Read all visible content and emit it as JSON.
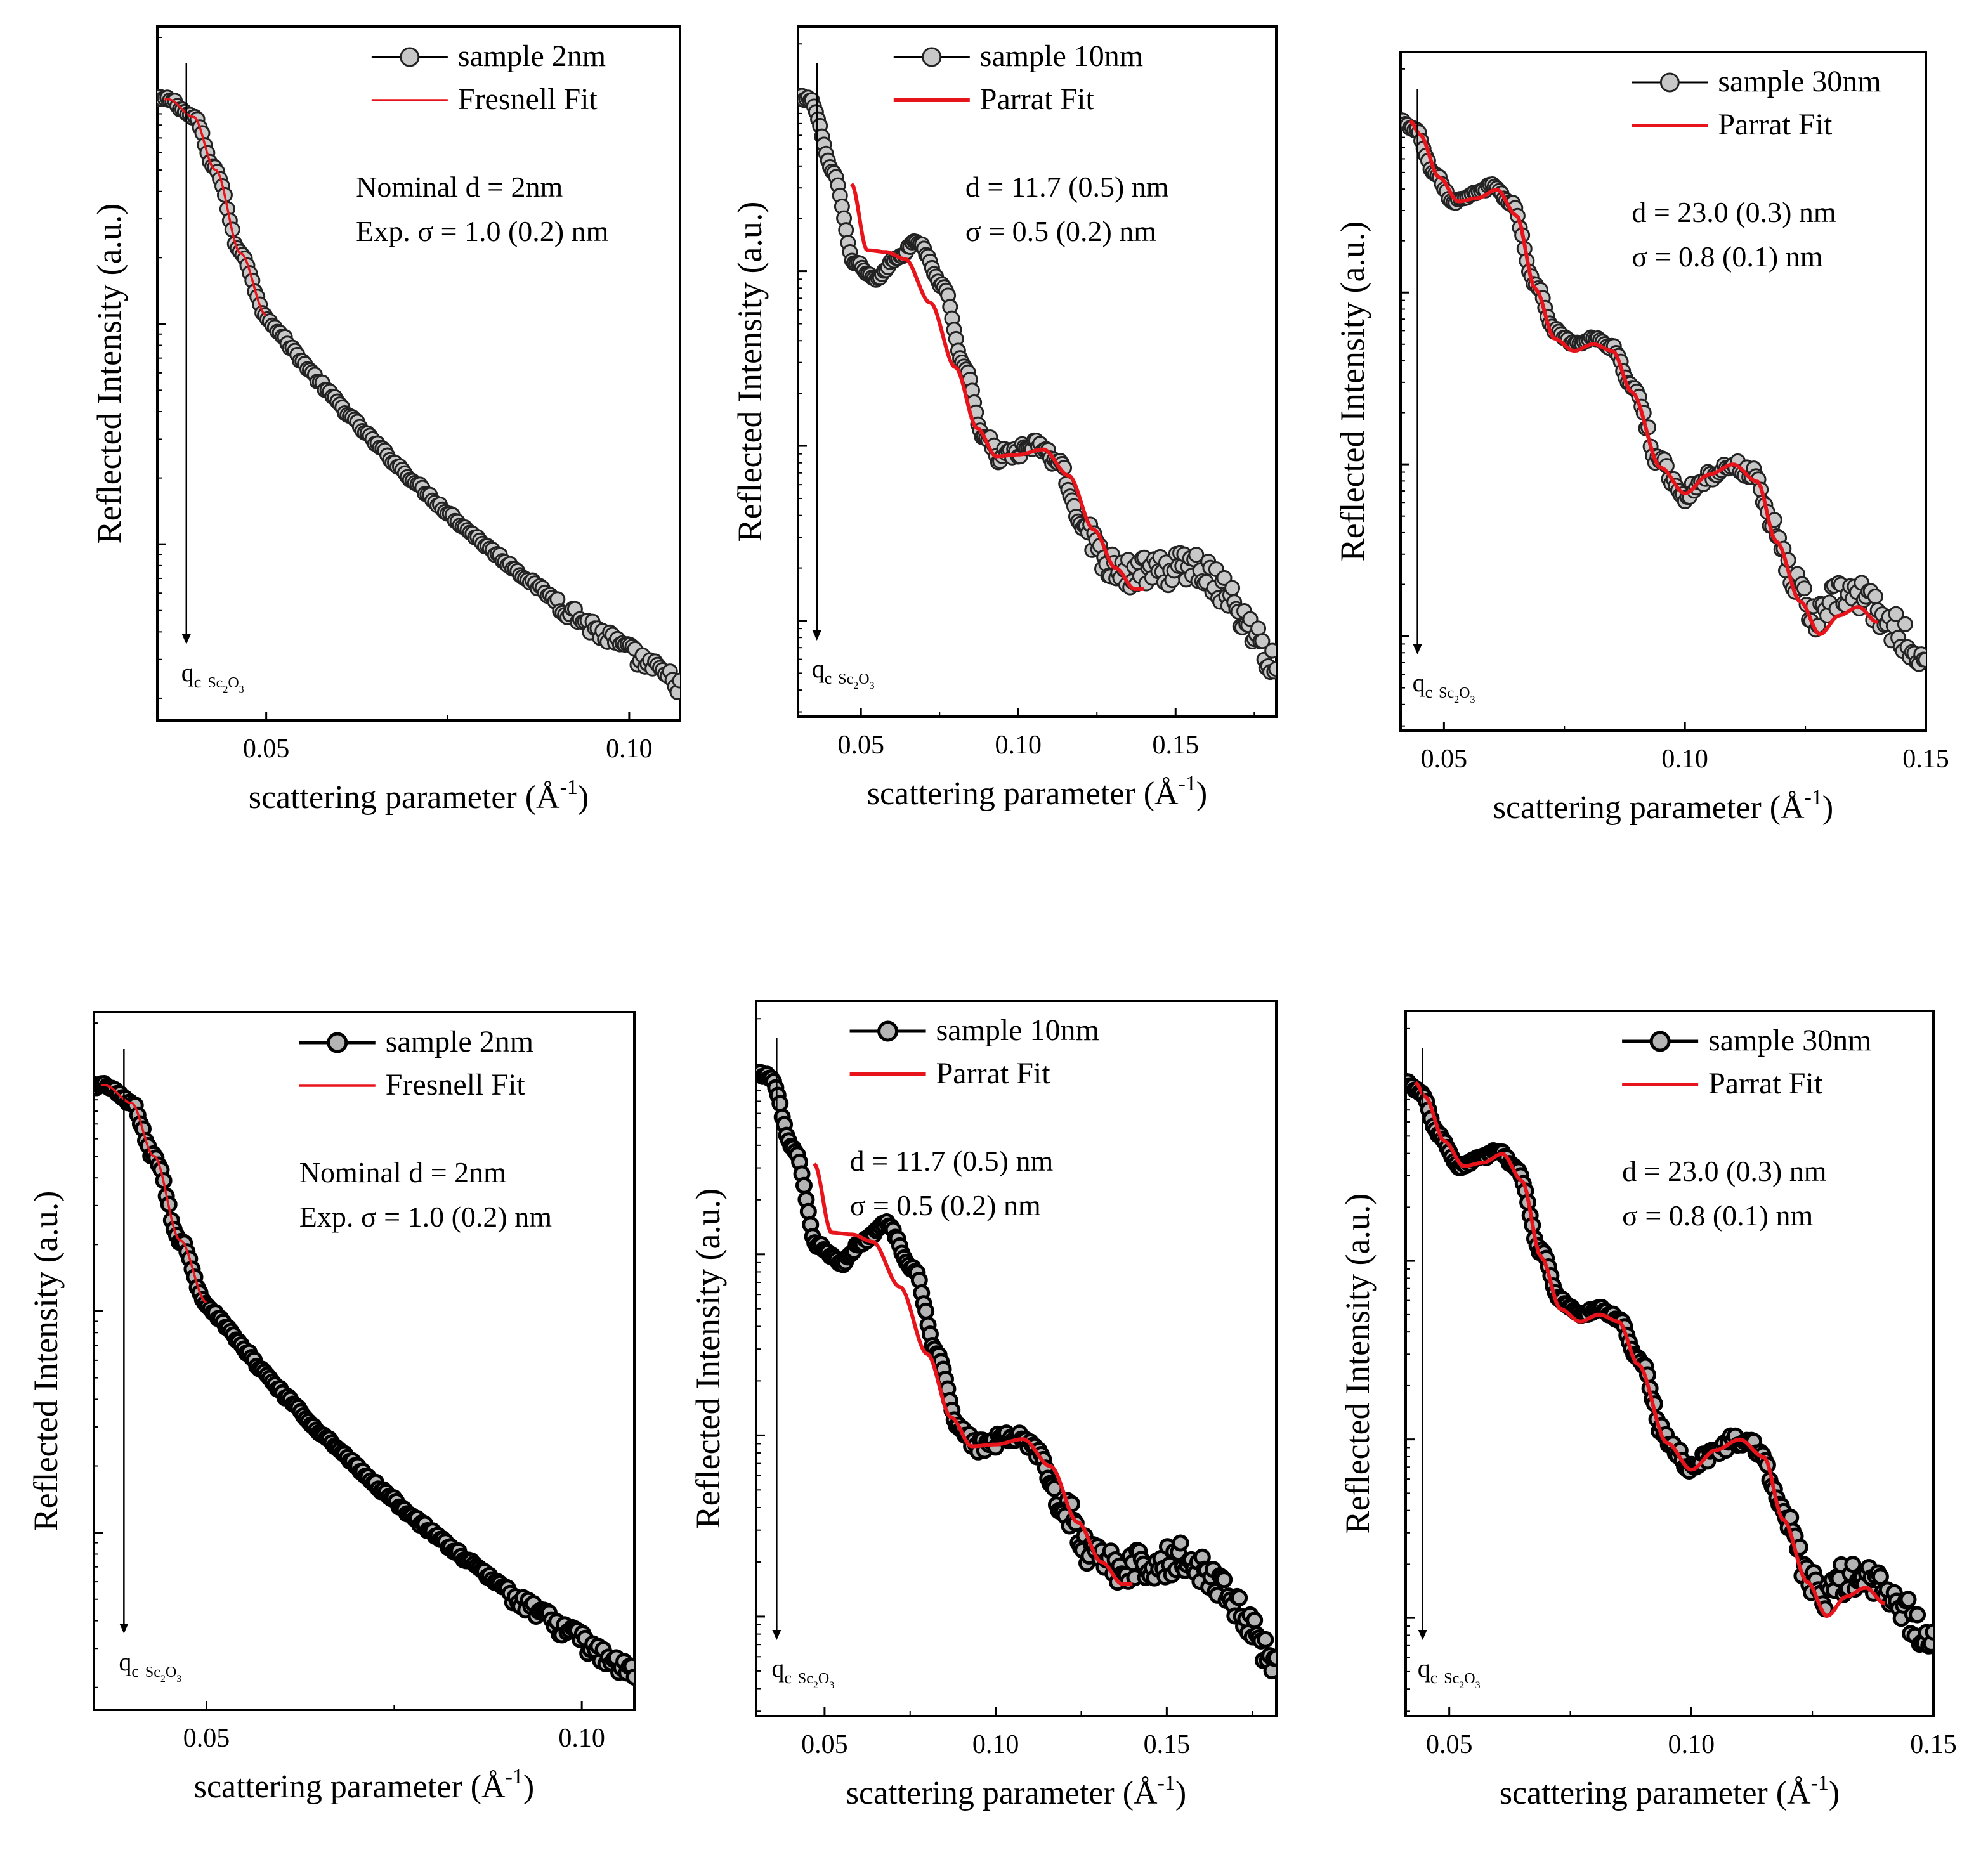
{
  "chart_data": [
    {
      "id": "row1-2nm",
      "type": "scatter",
      "xlabel": "scattering parameter (Å",
      "xlabel_sup": "-1",
      "xlabel_end": ")",
      "ylabel": "Reflected Intensity (a.u.)",
      "xlim": [
        0.035,
        0.107
      ],
      "ylim": [
        -2.8,
        0.35
      ],
      "xticks": [
        {
          "v": 0.05,
          "label": "0.05"
        },
        {
          "v": 0.1,
          "label": "0.10"
        }
      ],
      "minor_xticks": [
        0.075
      ],
      "yticks": [
        0,
        -1,
        -2
      ],
      "legend": [
        {
          "kind": "marker",
          "label": "sample 2nm"
        },
        {
          "kind": "line",
          "label": "Fresnell Fit"
        }
      ],
      "annotations": [
        "Nominal  d = 2nm",
        "Exp. σ = 1.0 (0.2) nm"
      ],
      "qc": {
        "x": 0.039,
        "label": "q",
        "sub1": "c",
        "sub2": "Sc",
        "sub3": "2",
        "sub4": "O",
        "sub5": "3"
      },
      "data_style": "light",
      "fit_style": "thin",
      "series": [
        {
          "name": "sample 2nm",
          "kind": "data",
          "model": "fresnel2",
          "x_range": [
            0.035,
            0.107
          ],
          "n_points": 210
        },
        {
          "name": "Fresnell Fit",
          "kind": "fit",
          "model": "fresnel2",
          "x_range": [
            0.036,
            0.05
          ]
        }
      ]
    },
    {
      "id": "row1-10nm",
      "type": "scatter",
      "xlabel": "scattering parameter (Å",
      "xlabel_sup": "-1",
      "xlabel_end": ")",
      "ylabel": "Reflected Intensity (a.u.)",
      "xlim": [
        0.03,
        0.182
      ],
      "ylim": [
        -3.55,
        0.4
      ],
      "xticks": [
        {
          "v": 0.05,
          "label": "0.05"
        },
        {
          "v": 0.1,
          "label": "0.10"
        },
        {
          "v": 0.15,
          "label": "0.15"
        }
      ],
      "minor_xticks": [
        0.075,
        0.125,
        0.175
      ],
      "yticks": [
        0,
        -1,
        -2,
        -3
      ],
      "legend": [
        {
          "kind": "marker",
          "label": "sample 10nm"
        },
        {
          "kind": "line",
          "label": "Parrat Fit"
        }
      ],
      "annotations": [
        "d = 11.7 (0.5) nm",
        "σ =   0.5 (0.2) nm"
      ],
      "qc": {
        "x": 0.036,
        "label": "q",
        "sub1": "c",
        "sub2": "Sc",
        "sub3": "2",
        "sub4": "O",
        "sub5": "3"
      },
      "data_style": "light",
      "fit_style": "thick",
      "series": [
        {
          "name": "sample 10nm",
          "kind": "data",
          "model": "data10",
          "x_range": [
            0.03,
            0.182
          ],
          "n_points": 240
        },
        {
          "name": "Parrat Fit",
          "kind": "fit",
          "model": "fit10",
          "x_range": [
            0.047,
            0.14
          ]
        }
      ]
    },
    {
      "id": "row1-30nm",
      "type": "scatter",
      "xlabel": "scattering parameter (Å",
      "xlabel_sup": "-1",
      "xlabel_end": ")",
      "ylabel": "Reflected Intensity (a.u.)",
      "xlim": [
        0.041,
        0.15
      ],
      "ylim": [
        -3.55,
        0.4
      ],
      "xticks": [
        {
          "v": 0.05,
          "label": "0.05"
        },
        {
          "v": 0.1,
          "label": "0.10"
        },
        {
          "v": 0.15,
          "label": "0.15"
        }
      ],
      "minor_xticks": [
        0.075,
        0.125
      ],
      "yticks": [
        0,
        -1,
        -2,
        -3
      ],
      "legend": [
        {
          "kind": "marker",
          "label": "sample 30nm"
        },
        {
          "kind": "line",
          "label": "Parrat Fit"
        }
      ],
      "annotations": [
        "d = 23.0 (0.3) nm",
        "σ =   0.8 (0.1) nm"
      ],
      "qc": {
        "x": 0.0445,
        "label": "q",
        "sub1": "c",
        "sub2": "Sc",
        "sub3": "2",
        "sub4": "O",
        "sub5": "3"
      },
      "data_style": "light",
      "fit_style": "thick",
      "series": [
        {
          "name": "sample 30nm",
          "kind": "data",
          "model": "data30",
          "x_range": [
            0.041,
            0.15
          ],
          "n_points": 230
        },
        {
          "name": "Parrat Fit",
          "kind": "fit",
          "model": "fit30",
          "x_range": [
            0.043,
            0.14
          ]
        }
      ]
    },
    {
      "id": "row2-2nm",
      "type": "scatter",
      "xlabel": "scattering parameter (Å",
      "xlabel_sup": "-1",
      "xlabel_end": ")",
      "ylabel": "Reflected Intensity (a.u.)",
      "xlim": [
        0.035,
        0.107
      ],
      "ylim": [
        -2.8,
        0.35
      ],
      "xticks": [
        {
          "v": 0.05,
          "label": "0.05"
        },
        {
          "v": 0.1,
          "label": "0.10"
        }
      ],
      "minor_xticks": [
        0.075
      ],
      "yticks": [
        0,
        -1,
        -2
      ],
      "legend": [
        {
          "kind": "marker",
          "label": "sample 2nm"
        },
        {
          "kind": "line",
          "label": "Fresnell Fit"
        }
      ],
      "annotations": [
        "Nominal  d = 2nm",
        "Exp. σ = 1.0 (0.2) nm"
      ],
      "qc": {
        "x": 0.039,
        "label": "q",
        "sub1": "c",
        "sub2": "Sc",
        "sub3": "2",
        "sub4": "O",
        "sub5": "3"
      },
      "data_style": "dark",
      "fit_style": "thin",
      "series": [
        {
          "name": "sample 2nm",
          "kind": "data",
          "model": "fresnel2",
          "x_range": [
            0.035,
            0.107
          ],
          "n_points": 210
        },
        {
          "name": "Fresnell Fit",
          "kind": "fit",
          "model": "fresnel2",
          "x_range": [
            0.036,
            0.05
          ]
        }
      ]
    },
    {
      "id": "row2-10nm",
      "type": "scatter",
      "xlabel": "scattering parameter (Å",
      "xlabel_sup": "-1",
      "xlabel_end": ")",
      "ylabel": "Reflected Intensity (a.u.)",
      "xlim": [
        0.03,
        0.182
      ],
      "ylim": [
        -3.55,
        0.4
      ],
      "xticks": [
        {
          "v": 0.05,
          "label": "0.05"
        },
        {
          "v": 0.1,
          "label": "0.10"
        },
        {
          "v": 0.15,
          "label": "0.15"
        }
      ],
      "minor_xticks": [
        0.075,
        0.125,
        0.175
      ],
      "yticks": [
        0,
        -1,
        -2,
        -3
      ],
      "legend": [
        {
          "kind": "marker",
          "label": "sample 10nm"
        },
        {
          "kind": "line",
          "label": "Parrat Fit"
        }
      ],
      "annotations": [
        "d = 11.7 (0.5) nm",
        "σ =   0.5 (0.2) nm"
      ],
      "qc": {
        "x": 0.036,
        "label": "q",
        "sub1": "c",
        "sub2": "Sc",
        "sub3": "2",
        "sub4": "O",
        "sub5": "3"
      },
      "data_style": "dark",
      "fit_style": "thick",
      "series": [
        {
          "name": "sample 10nm",
          "kind": "data",
          "model": "data10",
          "x_range": [
            0.03,
            0.182
          ],
          "n_points": 240
        },
        {
          "name": "Parrat Fit",
          "kind": "fit",
          "model": "fit10",
          "x_range": [
            0.047,
            0.14
          ]
        }
      ]
    },
    {
      "id": "row2-30nm",
      "type": "scatter",
      "xlabel": "scattering parameter (Å",
      "xlabel_sup": "-1",
      "xlabel_end": ")",
      "ylabel": "Reflected Intensity (a.u.)",
      "xlim": [
        0.041,
        0.15
      ],
      "ylim": [
        -3.55,
        0.4
      ],
      "xticks": [
        {
          "v": 0.05,
          "label": "0.05"
        },
        {
          "v": 0.1,
          "label": "0.10"
        },
        {
          "v": 0.15,
          "label": "0.15"
        }
      ],
      "minor_xticks": [
        0.075,
        0.125
      ],
      "yticks": [
        0,
        -1,
        -2,
        -3
      ],
      "legend": [
        {
          "kind": "marker",
          "label": "sample 30nm"
        },
        {
          "kind": "line",
          "label": "Parrat Fit"
        }
      ],
      "annotations": [
        "d = 23.0 (0.3) nm",
        "σ =   0.8 (0.1) nm"
      ],
      "qc": {
        "x": 0.0445,
        "label": "q",
        "sub1": "c",
        "sub2": "Sc",
        "sub3": "2",
        "sub4": "O",
        "sub5": "3"
      },
      "data_style": "dark",
      "fit_style": "thick",
      "series": [
        {
          "name": "sample 30nm",
          "kind": "data",
          "model": "data30",
          "x_range": [
            0.041,
            0.15
          ],
          "n_points": 230
        },
        {
          "name": "Parrat Fit",
          "kind": "fit",
          "model": "fit30",
          "x_range": [
            0.043,
            0.14
          ]
        }
      ]
    }
  ],
  "colors": {
    "axis": "#000000",
    "fit": "#e8141b",
    "marker_fill_light": "#c8c8c8",
    "marker_fill_dark": "#b4b4b4",
    "marker_edge_light": "#222222",
    "marker_edge_dark": "#000000"
  }
}
